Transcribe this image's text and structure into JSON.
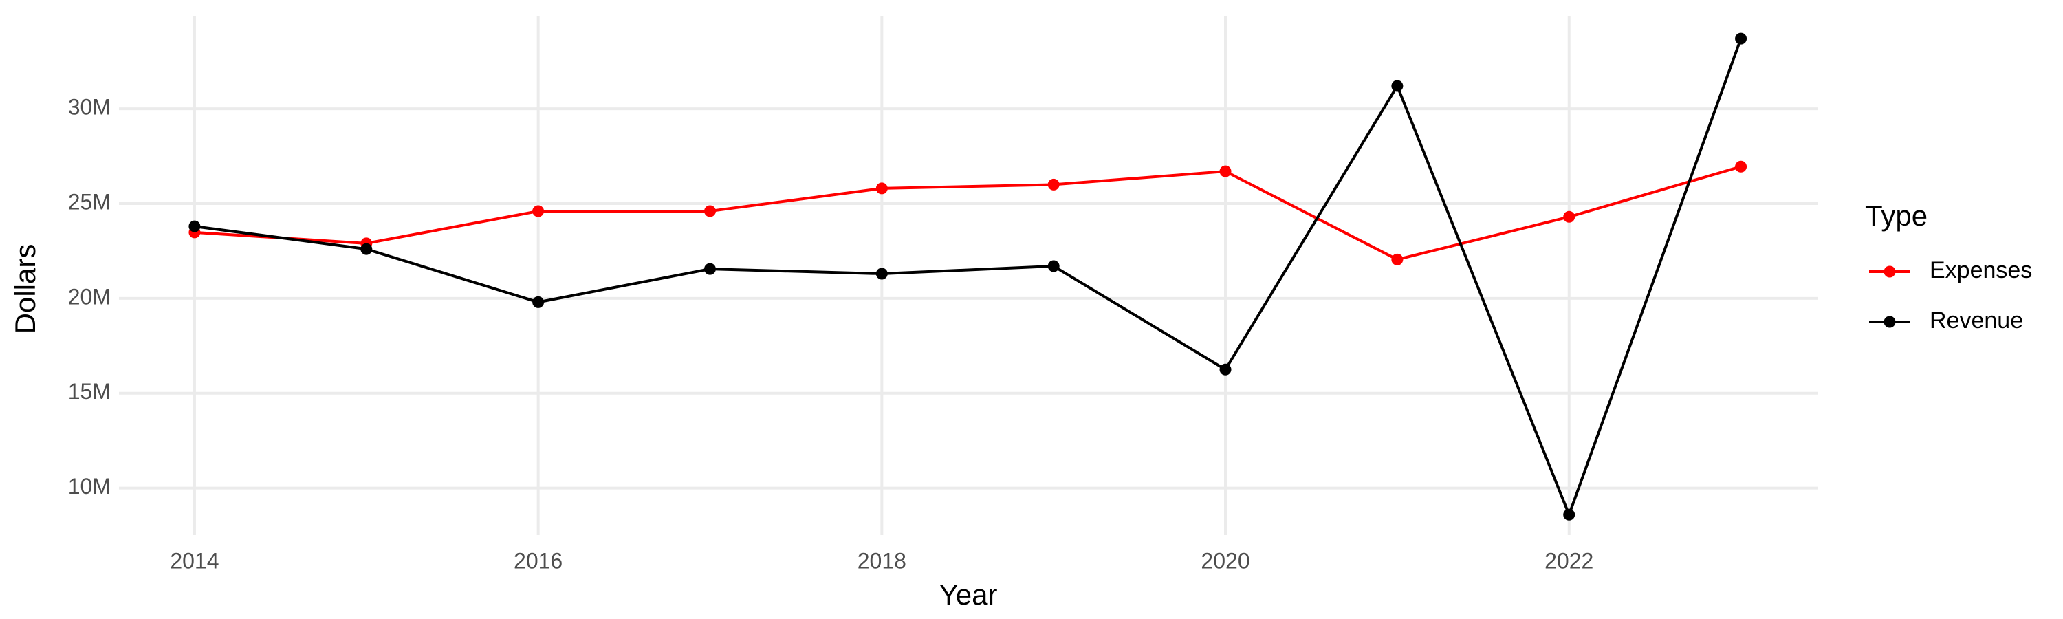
{
  "chart_data": {
    "type": "line",
    "x_label": "Year",
    "y_label": "Dollars",
    "legend_title": "Type",
    "x": [
      2014,
      2015,
      2016,
      2017,
      2018,
      2019,
      2020,
      2021,
      2022,
      2023
    ],
    "series": [
      {
        "name": "Expenses",
        "color": "#ff0000",
        "values": [
          23480000,
          22900000,
          24600000,
          24600000,
          25800000,
          26000000,
          26700000,
          22050000,
          24300000,
          26950000
        ]
      },
      {
        "name": "Revenue",
        "color": "#000000",
        "values": [
          23800000,
          22600000,
          19800000,
          21550000,
          21300000,
          21700000,
          16250000,
          31200000,
          8600000,
          33700000
        ]
      }
    ],
    "xlim": [
      2013.56,
      2023.45
    ],
    "xticks": [
      2014,
      2016,
      2018,
      2020,
      2022
    ],
    "ylim": [
      7520000,
      34900000
    ],
    "yticks": [
      {
        "value": 10000000,
        "label": "10M"
      },
      {
        "value": 15000000,
        "label": "15M"
      },
      {
        "value": 20000000,
        "label": "20M"
      },
      {
        "value": 25000000,
        "label": "25M"
      },
      {
        "value": 30000000,
        "label": "30M"
      }
    ],
    "grid": true,
    "legend_position": "right"
  }
}
